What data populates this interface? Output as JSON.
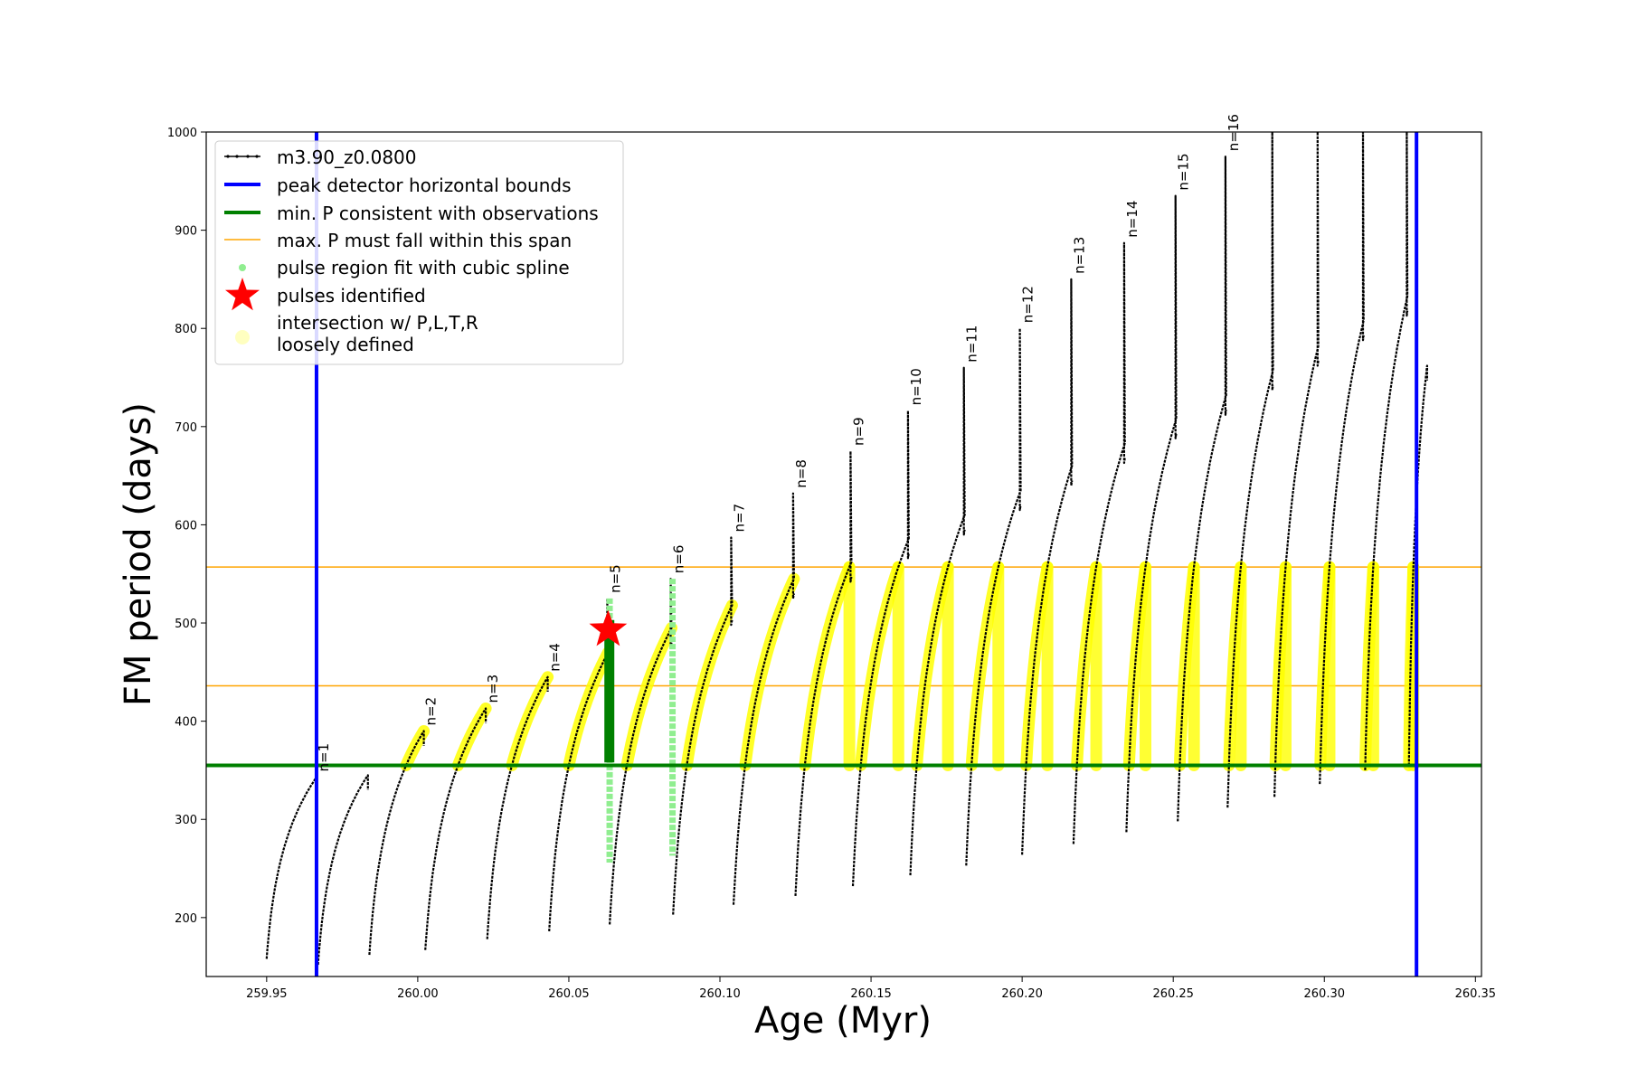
{
  "chart_data": {
    "type": "line",
    "xlabel": "Age (Myr)",
    "ylabel": "FM period (days)",
    "xlim": [
      259.93,
      260.352
    ],
    "ylim": [
      140,
      1000
    ],
    "xticks": [
      259.95,
      260.0,
      260.05,
      260.1,
      260.15,
      260.2,
      260.25,
      260.3,
      260.35
    ],
    "xtick_labels": [
      "259.95",
      "260.00",
      "260.05",
      "260.10",
      "260.15",
      "260.20",
      "260.25",
      "260.30",
      "260.35"
    ],
    "yticks": [
      200,
      300,
      400,
      500,
      600,
      700,
      800,
      900,
      1000
    ],
    "ytick_labels": [
      "200",
      "300",
      "400",
      "500",
      "600",
      "700",
      "800",
      "900",
      "1000"
    ],
    "grid": false,
    "legend_position": "top-left",
    "legend": [
      {
        "label": "m3.90_z0.0800",
        "style": "black-line-dots"
      },
      {
        "label": "peak detector horizontal bounds",
        "style": "blue-line"
      },
      {
        "label": "min. P consistent with observations",
        "style": "green-line"
      },
      {
        "label": "max. P must fall within this span",
        "style": "orange-line"
      },
      {
        "label": "pulse region fit with cubic spline",
        "style": "lightgreen-dot"
      },
      {
        "label": "pulses identified",
        "style": "red-star"
      },
      {
        "label": "intersection w/ P,L,T,R",
        "label2": "loosely defined",
        "style": "yellow-dot"
      }
    ],
    "vertical_lines": [
      259.9665,
      260.3305
    ],
    "min_p_line": 355,
    "max_p_span": [
      436,
      557
    ],
    "star": {
      "x": 260.063,
      "y": 493
    },
    "cycles": [
      {
        "n": "n=1",
        "start": 259.95,
        "end": 259.9665,
        "min": 158,
        "plateau": 343,
        "spike": 343
      },
      {
        "n": "",
        "start": 259.967,
        "end": 259.9835,
        "min": 152,
        "plateau": 345,
        "spike": 345
      },
      {
        "n": "n=2",
        "start": 259.984,
        "end": 260.002,
        "min": 162,
        "plateau": 390,
        "spike": 390
      },
      {
        "n": "n=3",
        "start": 260.0025,
        "end": 260.0225,
        "min": 167,
        "plateau": 413,
        "spike": 413
      },
      {
        "n": "n=4",
        "start": 260.023,
        "end": 260.043,
        "min": 178,
        "plateau": 445,
        "spike": 445
      },
      {
        "n": "n=5",
        "start": 260.0435,
        "end": 260.063,
        "min": 186,
        "plateau": 470,
        "spike": 525
      },
      {
        "n": "n=6",
        "start": 260.0635,
        "end": 260.084,
        "min": 193,
        "plateau": 495,
        "spike": 545
      },
      {
        "n": "n=7",
        "start": 260.0845,
        "end": 260.104,
        "min": 203,
        "plateau": 518,
        "spike": 587
      },
      {
        "n": "n=8",
        "start": 260.1045,
        "end": 260.1245,
        "min": 213,
        "plateau": 545,
        "spike": 632
      },
      {
        "n": "n=9",
        "start": 260.125,
        "end": 260.1435,
        "min": 222,
        "plateau": 562,
        "spike": 675
      },
      {
        "n": "n=10",
        "start": 260.144,
        "end": 260.1625,
        "min": 232,
        "plateau": 586,
        "spike": 716
      },
      {
        "n": "n=11",
        "start": 260.163,
        "end": 260.181,
        "min": 243,
        "plateau": 610,
        "spike": 760
      },
      {
        "n": "n=12",
        "start": 260.1815,
        "end": 260.1995,
        "min": 253,
        "plateau": 635,
        "spike": 800
      },
      {
        "n": "n=13",
        "start": 260.2,
        "end": 260.2165,
        "min": 264,
        "plateau": 660,
        "spike": 850
      },
      {
        "n": "n=14",
        "start": 260.217,
        "end": 260.234,
        "min": 275,
        "plateau": 683,
        "spike": 887
      },
      {
        "n": "n=15",
        "start": 260.2345,
        "end": 260.251,
        "min": 287,
        "plateau": 708,
        "spike": 935
      },
      {
        "n": "n=16",
        "start": 260.2515,
        "end": 260.2675,
        "min": 298,
        "plateau": 732,
        "spike": 975
      },
      {
        "n": "",
        "start": 260.268,
        "end": 260.283,
        "min": 312,
        "plateau": 757,
        "spike": 1000
      },
      {
        "n": "",
        "start": 260.2835,
        "end": 260.298,
        "min": 323,
        "plateau": 782,
        "spike": 1000
      },
      {
        "n": "",
        "start": 260.2985,
        "end": 260.313,
        "min": 336,
        "plateau": 808,
        "spike": 1000
      },
      {
        "n": "",
        "start": 260.3135,
        "end": 260.3275,
        "min": 350,
        "plateau": 833,
        "spike": 1000
      },
      {
        "n": "",
        "start": 260.328,
        "end": 260.334,
        "min": 355,
        "plateau": 762,
        "spike": 762
      }
    ]
  },
  "colors": {
    "curve": "#000000",
    "bounds": "#0000ff",
    "min_p": "#008000",
    "max_p": "#ffa500",
    "spline": "#90ee90",
    "star": "#ff0000",
    "intersection": "#ffff00",
    "intersection_loose": "#ffffc0"
  }
}
